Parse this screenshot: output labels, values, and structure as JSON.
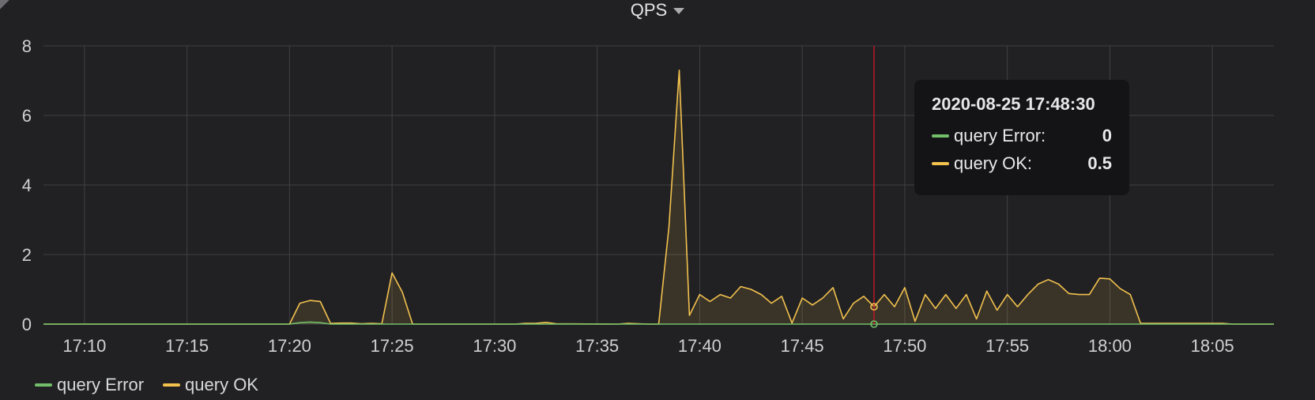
{
  "panel": {
    "title": "QPS"
  },
  "tooltip": {
    "time": "2020-08-25 17:48:30",
    "rows": [
      {
        "label": "query Error:",
        "value": "0",
        "color": "#73bf69"
      },
      {
        "label": "query OK:",
        "value": "0.5",
        "color": "#f2c14e"
      }
    ]
  },
  "legend": [
    {
      "label": "query Error",
      "color": "#73bf69"
    },
    {
      "label": "query OK",
      "color": "#f2c14e"
    }
  ],
  "colors": {
    "error": "#73bf69",
    "ok": "#f2c14e",
    "crosshair": "#c4162a",
    "grid": "#404045"
  },
  "chart_data": {
    "type": "area",
    "x_unit": "time",
    "xlim": [
      "17:08:00",
      "18:08:00"
    ],
    "ylim": [
      0,
      8
    ],
    "yticks": [
      0,
      2,
      4,
      6,
      8
    ],
    "xticks": [
      "17:10",
      "17:15",
      "17:20",
      "17:25",
      "17:30",
      "17:35",
      "17:40",
      "17:45",
      "17:50",
      "17:55",
      "18:00",
      "18:05"
    ],
    "grid": true,
    "legend_position": "bottom-left",
    "crosshair_time": "17:48:30",
    "series": [
      {
        "name": "query OK",
        "color": "#f2c14e",
        "points": [
          [
            "17:08:00",
            0
          ],
          [
            "17:20:00",
            0
          ],
          [
            "17:20:30",
            0.6
          ],
          [
            "17:21:00",
            0.68
          ],
          [
            "17:21:30",
            0.65
          ],
          [
            "17:22:00",
            0.02
          ],
          [
            "17:22:30",
            0.03
          ],
          [
            "17:23:00",
            0.03
          ],
          [
            "17:23:30",
            0.01
          ],
          [
            "17:24:00",
            0.02
          ],
          [
            "17:24:30",
            0.01
          ],
          [
            "17:25:00",
            1.47
          ],
          [
            "17:25:30",
            0.92
          ],
          [
            "17:26:00",
            0
          ],
          [
            "17:31:00",
            0
          ],
          [
            "17:31:30",
            0.02
          ],
          [
            "17:32:00",
            0.02
          ],
          [
            "17:32:30",
            0.05
          ],
          [
            "17:33:00",
            0.01
          ],
          [
            "17:36:00",
            0
          ],
          [
            "17:36:30",
            0.02
          ],
          [
            "17:37:30",
            0
          ],
          [
            "17:38:00",
            0
          ],
          [
            "17:38:30",
            2.8
          ],
          [
            "17:39:00",
            7.3
          ],
          [
            "17:39:30",
            0.25
          ],
          [
            "17:40:00",
            0.85
          ],
          [
            "17:40:30",
            0.65
          ],
          [
            "17:41:00",
            0.85
          ],
          [
            "17:41:30",
            0.75
          ],
          [
            "17:42:00",
            1.08
          ],
          [
            "17:42:30",
            1.0
          ],
          [
            "17:43:00",
            0.85
          ],
          [
            "17:43:30",
            0.6
          ],
          [
            "17:44:00",
            0.8
          ],
          [
            "17:44:30",
            0.03
          ],
          [
            "17:45:00",
            0.75
          ],
          [
            "17:45:30",
            0.55
          ],
          [
            "17:46:00",
            0.75
          ],
          [
            "17:46:30",
            1.05
          ],
          [
            "17:47:00",
            0.15
          ],
          [
            "17:47:30",
            0.6
          ],
          [
            "17:48:00",
            0.8
          ],
          [
            "17:48:30",
            0.5
          ],
          [
            "17:49:00",
            0.85
          ],
          [
            "17:49:30",
            0.5
          ],
          [
            "17:50:00",
            1.05
          ],
          [
            "17:50:30",
            0.08
          ],
          [
            "17:51:00",
            0.85
          ],
          [
            "17:51:30",
            0.45
          ],
          [
            "17:52:00",
            0.85
          ],
          [
            "17:52:30",
            0.45
          ],
          [
            "17:53:00",
            0.85
          ],
          [
            "17:53:30",
            0.15
          ],
          [
            "17:54:00",
            0.95
          ],
          [
            "17:54:30",
            0.4
          ],
          [
            "17:55:00",
            0.85
          ],
          [
            "17:55:30",
            0.5
          ],
          [
            "17:56:00",
            0.85
          ],
          [
            "17:56:30",
            1.15
          ],
          [
            "17:57:00",
            1.28
          ],
          [
            "17:57:30",
            1.15
          ],
          [
            "17:58:00",
            0.88
          ],
          [
            "17:58:30",
            0.85
          ],
          [
            "17:59:00",
            0.85
          ],
          [
            "17:59:30",
            1.32
          ],
          [
            "18:00:00",
            1.3
          ],
          [
            "18:00:30",
            1.02
          ],
          [
            "18:01:00",
            0.85
          ],
          [
            "18:01:30",
            0.02
          ],
          [
            "18:05:30",
            0.02
          ],
          [
            "18:06:00",
            0
          ],
          [
            "18:08:00",
            0
          ]
        ]
      },
      {
        "name": "query Error",
        "color": "#73bf69",
        "points": [
          [
            "17:08:00",
            0
          ],
          [
            "17:20:00",
            0
          ],
          [
            "17:20:30",
            0.04
          ],
          [
            "17:21:00",
            0.06
          ],
          [
            "17:21:30",
            0.04
          ],
          [
            "17:22:00",
            0
          ],
          [
            "18:08:00",
            0
          ]
        ]
      }
    ]
  }
}
